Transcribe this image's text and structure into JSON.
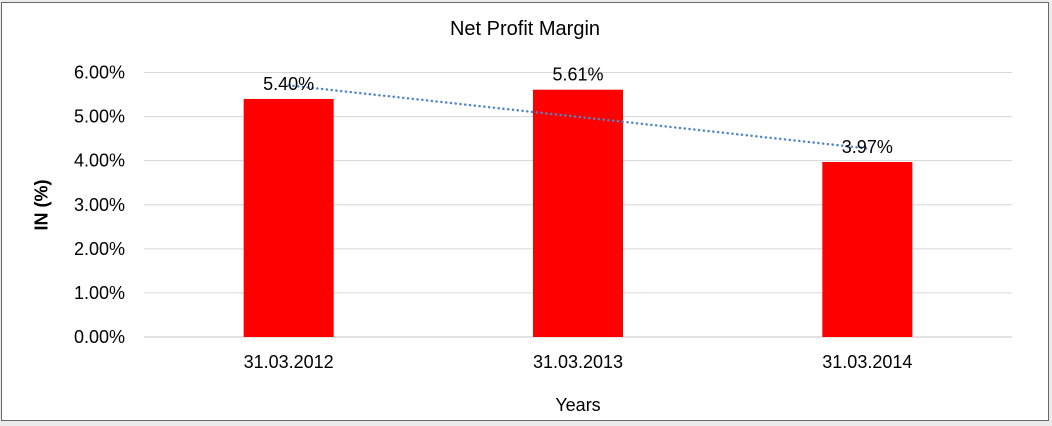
{
  "chart_data": {
    "type": "bar",
    "title": "Net Profit Margin",
    "xlabel": "Years",
    "ylabel": "IN (%)",
    "categories": [
      "31.03.2012",
      "31.03.2013",
      "31.03.2014"
    ],
    "values": [
      5.4,
      5.61,
      3.97
    ],
    "data_labels": [
      "5.40%",
      "5.61%",
      "3.97%"
    ],
    "ytick_labels": [
      "0.00%",
      "1.00%",
      "2.00%",
      "3.00%",
      "4.00%",
      "5.00%",
      "6.00%"
    ],
    "ylim": [
      0,
      6
    ],
    "grid": true,
    "legend": "none",
    "bar_color": "#FF0000",
    "gridline_color": "#D6D6D6",
    "axis_line_color": "#C6C6C6",
    "trendline": {
      "type": "linear",
      "style": "dotted",
      "color": "#4E86C8"
    }
  }
}
